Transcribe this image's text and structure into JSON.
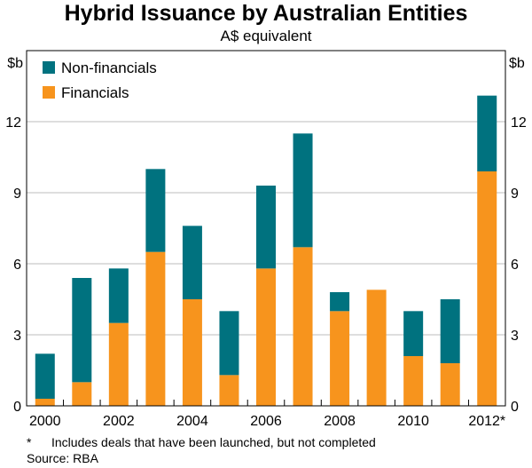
{
  "chart_data": {
    "type": "bar",
    "stacked": true,
    "title": "Hybrid Issuance by Australian Entities",
    "subtitle": "A$ equivalent",
    "ylabel_left": "$b",
    "ylabel_right": "$b",
    "ylim": [
      0,
      15
    ],
    "yticks": [
      "0",
      "3",
      "6",
      "9",
      "12"
    ],
    "categories": [
      "2000",
      "2001",
      "2002",
      "2003",
      "2004",
      "2005",
      "2006",
      "2007",
      "2008",
      "2009",
      "2010",
      "2011",
      "2012*"
    ],
    "x_tick_labels": [
      "2000",
      "2002",
      "2004",
      "2006",
      "2008",
      "2010",
      "2012*"
    ],
    "series": [
      {
        "name": "Financials",
        "color": "#F7941D",
        "values": [
          0.3,
          1.0,
          3.5,
          6.5,
          4.5,
          1.3,
          5.8,
          6.7,
          4.0,
          4.9,
          2.1,
          1.8,
          9.9
        ]
      },
      {
        "name": "Non-financials",
        "color": "#00727F",
        "values": [
          1.9,
          4.4,
          2.3,
          3.5,
          3.1,
          2.7,
          3.5,
          4.8,
          0.8,
          0.0,
          1.9,
          2.7,
          3.2
        ]
      }
    ],
    "legend": [
      "Non-financials",
      "Financials"
    ],
    "legend_position": "top-left",
    "grid": true
  },
  "footnote": {
    "mark": "*",
    "text": "Includes deals that have been launched, but not completed"
  },
  "source": "Source: RBA"
}
